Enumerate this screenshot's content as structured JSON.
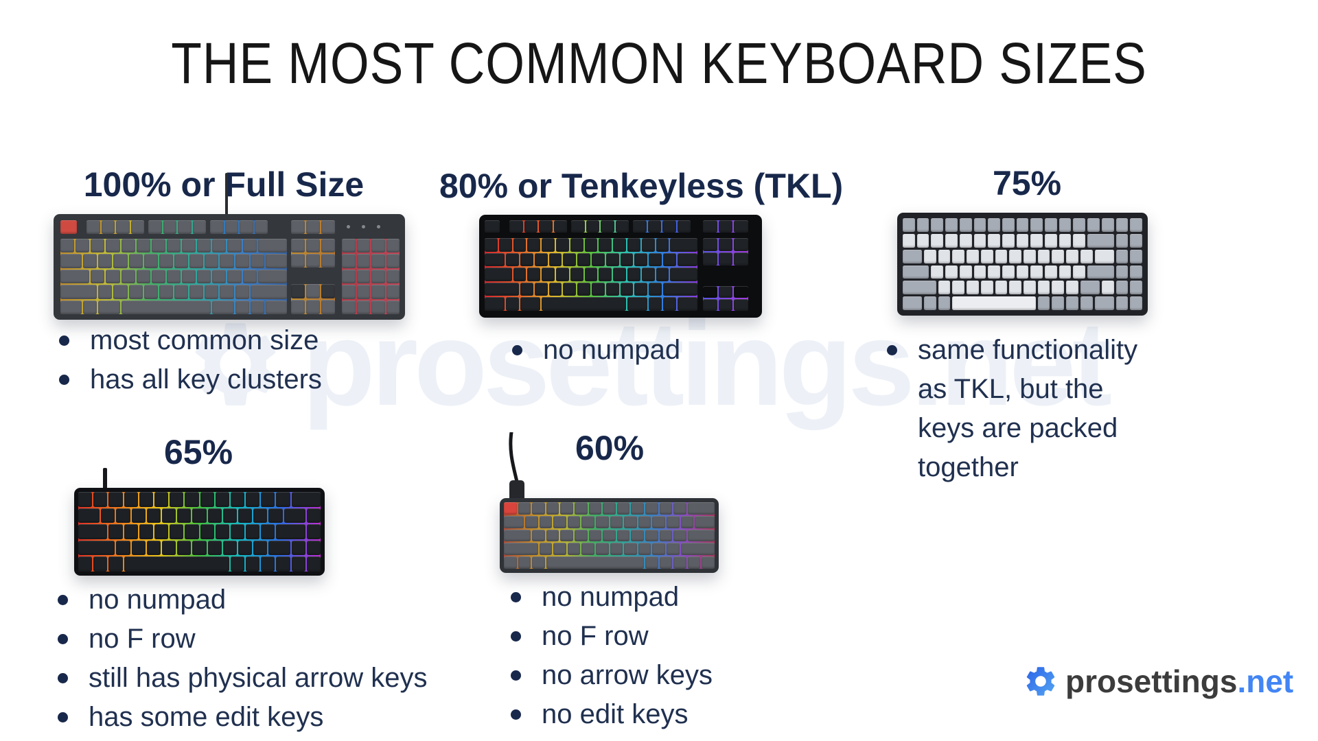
{
  "title": "THE MOST COMMON KEYBOARD SIZES",
  "watermark_text": "prosettings.net",
  "sections": [
    {
      "id": "100",
      "label": "100% or Full Size",
      "bullets": [
        "most common size",
        "has all key clusters"
      ],
      "keyboard": "full-size dark gray RGB mechanical keyboard with red Esc key and numpad"
    },
    {
      "id": "80",
      "label": "80% or Tenkeyless (TKL)",
      "bullets": [
        "no numpad"
      ],
      "keyboard": "black tenkeyless keyboard with rainbow RGB backlight"
    },
    {
      "id": "75",
      "label": "75%",
      "bullets": [
        "same functionality as TKL, but the keys are packed together"
      ],
      "keyboard": "75% keyboard, black frame with white and gray keycaps"
    },
    {
      "id": "65",
      "label": "65%",
      "bullets": [
        "no numpad",
        "no F row",
        "still has physical arrow keys",
        "has some edit keys"
      ],
      "keyboard": "black 65% keyboard with vivid rainbow RGB backlight"
    },
    {
      "id": "60",
      "label": "60%",
      "bullets": [
        "no numpad",
        "no F row",
        "no arrow keys",
        "no edit keys"
      ],
      "keyboard": "dark gray 60% keyboard with red Esc key and RGB backlight"
    }
  ],
  "logo": {
    "name": "prosettings",
    "tld": ".net"
  },
  "colors": {
    "title": "#161616",
    "navy": "#18284b",
    "bullet_text": "#20304f",
    "logo_dark": "#3c3c3c",
    "logo_blue": "#4285f4",
    "watermark": "#edf1f7",
    "background": "#ffffff"
  },
  "keyboards": [
    {
      "name": "100-percent",
      "body": "#34373c",
      "key": "#5d6066",
      "esc": "#cf4a41",
      "glow_main": [
        "#c28d2a",
        "#c2bb36",
        "#43b065",
        "#2fa69d",
        "#3b7fc7",
        "#33609f"
      ],
      "glow_f1": [
        "#c08a28",
        "#c4b432"
      ],
      "glow_f2": [
        "#3fae62",
        "#2fa39b"
      ],
      "glow_f3": [
        "#2f7fc0",
        "#3a66a8"
      ],
      "glow_nav": [
        "#bf8d2f",
        "#b8742c"
      ],
      "glow_numpad": [
        "#b03a47",
        "#c14455"
      ]
    },
    {
      "name": "80-percent",
      "body": "#0c0d0f",
      "key": "#1f2226",
      "glow_main": [
        "#d8262c",
        "#e2622a",
        "#ddb92b",
        "#58c13e",
        "#2cc0b0",
        "#2e7fe0",
        "#8a3be0"
      ],
      "glow_f1": [
        "#d8262c",
        "#e8872a"
      ],
      "glow_f2": [
        "#b9d02b",
        "#2cc0b0"
      ],
      "glow_f3": [
        "#2e7fe0",
        "#4a55e0"
      ],
      "glow_nav": [
        "#5a55e8",
        "#a43ae0"
      ],
      "esc_glow": [
        "#e0366a",
        "#d8262c"
      ]
    },
    {
      "name": "75-percent",
      "body": "#202227",
      "key_light": "#e0e3e8",
      "key_gray": "#a6acb5",
      "key_space": "#ecedf1"
    },
    {
      "name": "65-percent",
      "body": "#0f1013",
      "key": "#1d2024",
      "glow_main": [
        "#e03024",
        "#ef7a1a",
        "#ecc518",
        "#3fc13e",
        "#13b9c6",
        "#2b6ce6",
        "#c32ad4"
      ]
    },
    {
      "name": "60-percent",
      "body": "#2f3338",
      "key": "#5b5e64",
      "esc": "#d9453c",
      "glow_main": [
        "#a84a38",
        "#c28d2a",
        "#bdb232",
        "#3fae62",
        "#2fa39b",
        "#3b7fc7",
        "#8a4bbf",
        "#a8385a"
      ]
    }
  ]
}
